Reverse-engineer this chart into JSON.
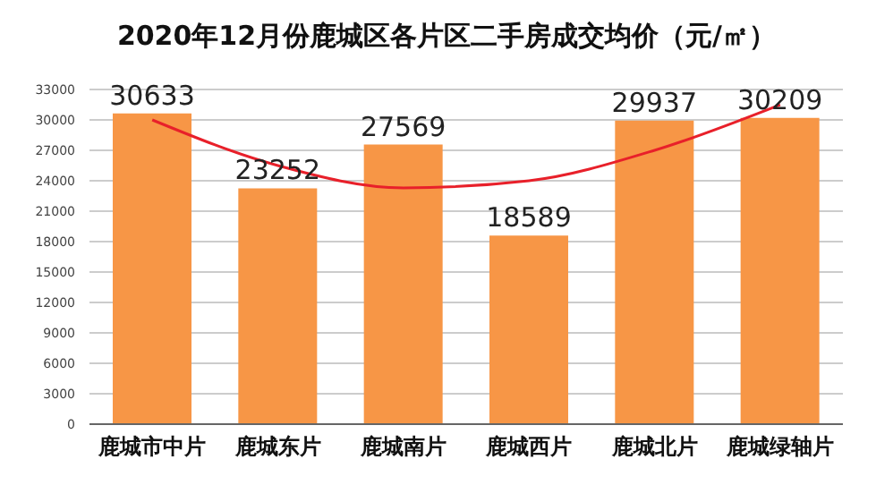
{
  "chart_data": {
    "type": "bar",
    "title": "2020年12月份鹿城区各片区二手房成交均价（元/㎡）",
    "categories": [
      "鹿城市中片",
      "鹿城东片",
      "鹿城南片",
      "鹿城西片",
      "鹿城北片",
      "鹿城绿轴片"
    ],
    "series": [
      {
        "color": "#f79646",
        "values": [
          30633,
          23252,
          27569,
          18589,
          29937,
          30209
        ],
        "value_labels": [
          "30633",
          "23252",
          "27569",
          "18589",
          "29937",
          "30209"
        ]
      },
      {
        "type": "line",
        "color": "#e8202a",
        "x": [
          "鹿城市中片",
          "鹿城东片",
          "鹿城南片",
          "鹿城西片",
          "鹿城北片",
          "鹿城绿轴片"
        ],
        "values": [
          30000,
          25500,
          23300,
          24000,
          27000,
          31500
        ]
      }
    ],
    "ylim": [
      0,
      33000
    ],
    "yticks": [
      0,
      3000,
      6000,
      9000,
      12000,
      15000,
      18000,
      21000,
      24000,
      27000,
      30000,
      33000
    ],
    "grid": "y",
    "marker": "none"
  }
}
